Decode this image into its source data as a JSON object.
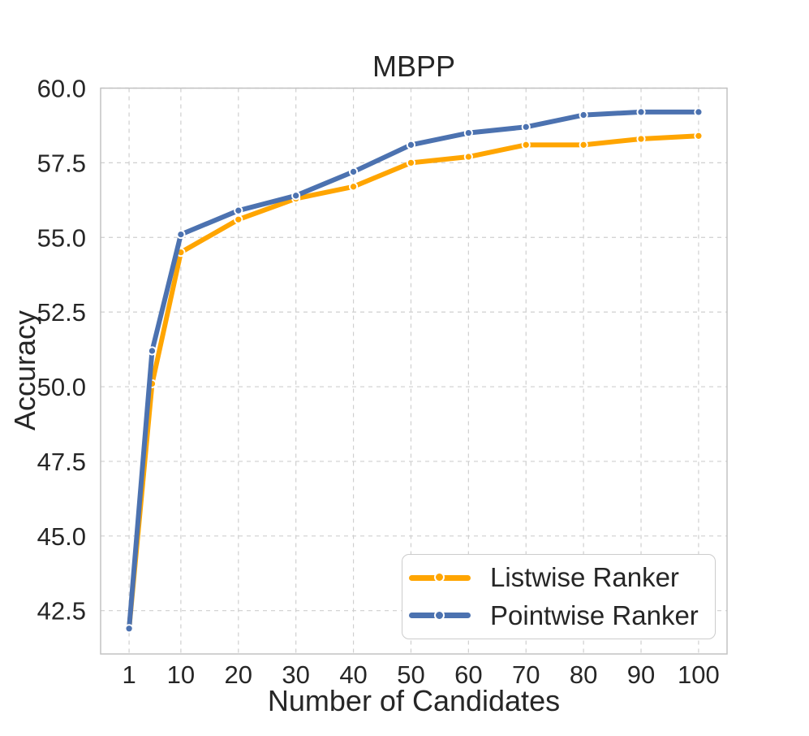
{
  "chart_data": {
    "type": "line",
    "title": "MBPP",
    "xlabel": "Number of Candidates",
    "ylabel": "Accuracy",
    "x": [
      1,
      5,
      10,
      20,
      30,
      40,
      50,
      60,
      70,
      80,
      90,
      100
    ],
    "xticks": [
      "1",
      "10",
      "20",
      "30",
      "40",
      "50",
      "60",
      "70",
      "80",
      "90",
      "100"
    ],
    "xtick_values": [
      1,
      10,
      20,
      30,
      40,
      50,
      60,
      70,
      80,
      90,
      100
    ],
    "ytick_labels": [
      "42.5",
      "45.0",
      "47.5",
      "50.0",
      "52.5",
      "55.0",
      "57.5",
      "60.0"
    ],
    "ytick_values": [
      42.5,
      45.0,
      47.5,
      50.0,
      52.5,
      55.0,
      57.5,
      60.0
    ],
    "xlim": [
      -3.95,
      104.95
    ],
    "ylim": [
      41.05,
      60.0
    ],
    "grid": "dashed",
    "legend_position": "lower right",
    "series": [
      {
        "name": "Listwise Ranker",
        "color": "#FFA500",
        "values": [
          41.9,
          50.1,
          54.5,
          55.6,
          56.3,
          56.7,
          57.5,
          57.7,
          58.1,
          58.1,
          58.3,
          58.4
        ]
      },
      {
        "name": "Pointwise Ranker",
        "color": "#4C72B0",
        "values": [
          41.9,
          51.2,
          55.1,
          55.9,
          56.4,
          57.2,
          58.1,
          58.5,
          58.7,
          59.1,
          59.2,
          59.2
        ]
      }
    ]
  }
}
